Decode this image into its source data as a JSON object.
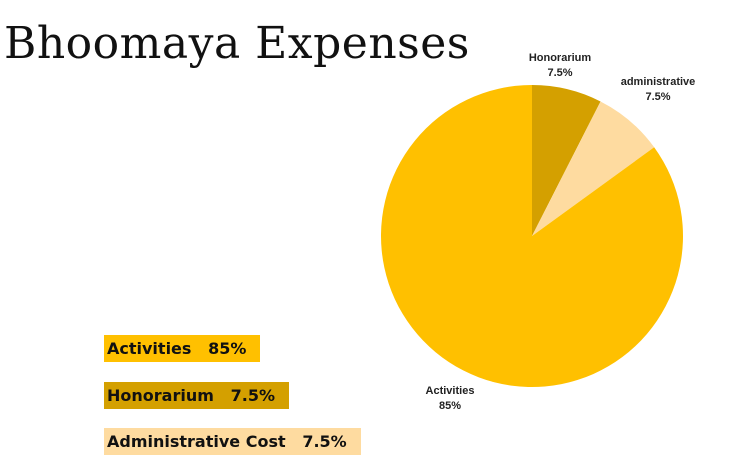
{
  "title": "Bhoomaya Expenses",
  "chart_data": {
    "type": "pie",
    "title": "Bhoomaya Expenses",
    "slices": [
      {
        "name": "Honorarium",
        "value": 7.5,
        "label": "Honorarium",
        "pct_label": "7.5%",
        "color": "#D4A000"
      },
      {
        "name": "administrative",
        "value": 7.5,
        "label": "administrative",
        "pct_label": "7.5%",
        "color": "#FEDBA0"
      },
      {
        "name": "Activities",
        "value": 85,
        "label": "Activities",
        "pct_label": "85%",
        "color": "#FFC000"
      }
    ],
    "start_angle_deg": 0,
    "direction": "clockwise"
  },
  "legend": [
    {
      "text": "Activities   85%",
      "color": "#FFC000"
    },
    {
      "text": "Honorarium   7.5%",
      "color": "#D4A000"
    },
    {
      "text": "Administrative Cost   7.5%",
      "color": "#FEDBA0"
    }
  ]
}
